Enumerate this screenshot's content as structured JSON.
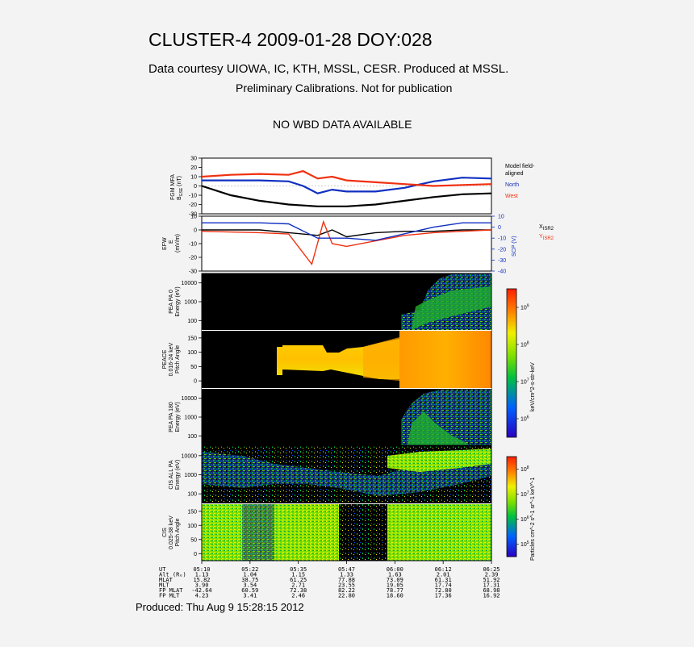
{
  "header": {
    "title": "CLUSTER-4 2009-01-28 DOY:028",
    "courtesy": "Data courtesy UIOWA, IC, KTH, MSSL, CESR. Produced at MSSL.",
    "preliminary": "Preliminary Calibrations. Not for publication",
    "no_wbd": "NO WBD DATA AVAILABLE"
  },
  "footer": {
    "produced": "Produced: Thu Aug  9 15:28:15 2012"
  },
  "chart_data": [
    {
      "type": "line",
      "panel": "FGM",
      "ylabel_lines": [
        "FGM MFA",
        "B",
        "GSE",
        "(nT)"
      ],
      "ylim": [
        -30,
        30
      ],
      "yticks": [
        30,
        20,
        10,
        0,
        -10,
        -20,
        -30
      ],
      "legend": [
        "Model field-",
        "aligned",
        "North",
        "West"
      ],
      "colors": {
        "model": "#000000",
        "north": "#1030c0",
        "west": "#f03010"
      },
      "series": [
        {
          "name": "Model field-aligned",
          "x": [
            0,
            0.1,
            0.2,
            0.3,
            0.4,
            0.5,
            0.6,
            0.7,
            0.8,
            0.9,
            1.0
          ],
          "values": [
            0,
            -10,
            -16,
            -20,
            -22,
            -22,
            -20,
            -16,
            -12,
            -9,
            -8
          ]
        },
        {
          "name": "North",
          "x": [
            0,
            0.1,
            0.2,
            0.3,
            0.35,
            0.4,
            0.45,
            0.5,
            0.6,
            0.7,
            0.8,
            0.9,
            1.0
          ],
          "values": [
            6,
            6,
            6,
            5,
            0,
            -8,
            -4,
            -6,
            -6,
            -2,
            5,
            9,
            8
          ]
        },
        {
          "name": "West",
          "x": [
            0,
            0.1,
            0.2,
            0.3,
            0.35,
            0.4,
            0.45,
            0.5,
            0.6,
            0.7,
            0.8,
            0.9,
            1.0
          ],
          "values": [
            10,
            12,
            13,
            12,
            16,
            8,
            10,
            6,
            4,
            2,
            0,
            1,
            2
          ]
        }
      ]
    },
    {
      "type": "line",
      "panel": "EFW",
      "ylabel_lines": [
        "EFW",
        "E",
        "(mV/m)"
      ],
      "ylim": [
        -30,
        10
      ],
      "yticks": [
        10,
        0,
        -10,
        -20,
        -30
      ],
      "right_axis": {
        "label": "SCP (V)",
        "ylim": [
          -40,
          10
        ],
        "ticks": [
          10,
          0,
          -10,
          -20,
          -30,
          -40
        ]
      },
      "legend": [
        "X",
        "ISR2",
        "Y",
        "ISR2"
      ],
      "colors": {
        "x": "#000000",
        "y": "#f03010",
        "scp": "#1030c0"
      },
      "series": [
        {
          "name": "X ISR2",
          "x": [
            0,
            0.2,
            0.3,
            0.4,
            0.45,
            0.5,
            0.6,
            0.7,
            0.8,
            0.9,
            1.0
          ],
          "values": [
            0,
            0,
            -2,
            -4,
            0,
            -5,
            -2,
            -1,
            -1,
            0,
            0
          ]
        },
        {
          "name": "Y ISR2",
          "x": [
            0,
            0.2,
            0.3,
            0.38,
            0.42,
            0.45,
            0.5,
            0.6,
            0.7,
            0.8,
            0.9,
            1.0
          ],
          "values": [
            -1,
            -2,
            -3,
            -25,
            6,
            -10,
            -12,
            -8,
            -4,
            -2,
            -1,
            0
          ]
        },
        {
          "name": "SCP",
          "x": [
            0,
            0.2,
            0.3,
            0.4,
            0.5,
            0.6,
            0.7,
            0.8,
            0.9,
            1.0
          ],
          "values": [
            4,
            4,
            3,
            -10,
            -10,
            -12,
            -6,
            0,
            4,
            4
          ]
        }
      ]
    },
    {
      "type": "heatmap",
      "panel": "PEACE",
      "subpanels": [
        {
          "ylabel_lines": [
            "PEA PA 0",
            "Energy (eV)"
          ],
          "yticks": [
            "10000",
            "1000",
            "100"
          ]
        },
        {
          "ylabel_lines": [
            "PEACE",
            "0.016-24 keV",
            "Pitch Angle"
          ],
          "yticks": [
            "150",
            "100",
            "50",
            "0"
          ]
        },
        {
          "ylabel_lines": [
            "PEA PA 180",
            "Energy (eV)"
          ],
          "yticks": [
            "10000",
            "1000",
            "100"
          ]
        }
      ],
      "colorbar": {
        "label": "keV/cm^2-s-str-keV",
        "ticks": [
          "10^9",
          "10^8",
          "10^7",
          "10^6"
        ]
      }
    },
    {
      "type": "heatmap",
      "panel": "CIS",
      "subpanels": [
        {
          "ylabel_lines": [
            "CIS ALL PA",
            "Energy (eV)"
          ],
          "yticks": [
            "10000",
            "1000",
            "100"
          ]
        },
        {
          "ylabel_lines": [
            "CIS",
            "0.025-38 keV",
            "Pitch Angle"
          ],
          "yticks": [
            "150",
            "100",
            "50",
            "0"
          ]
        }
      ],
      "colorbar": {
        "label": "Particles cm^-2 s^-1 sr^-1 keV^-1",
        "ticks": [
          "10^8",
          "10^7",
          "10^6",
          "10^5"
        ]
      }
    }
  ],
  "ephemeris": {
    "labels": [
      "UT",
      "Alt (Rₑ)",
      "MLAT",
      "MLT",
      "FP MLAT",
      "FP MLT"
    ],
    "columns": [
      {
        "ut": "05:10",
        "alt": "1.13",
        "mlat": "15.82",
        "mlt": "3.90",
        "fp_mlat": "-42.64",
        "fp_mlt": "4.23"
      },
      {
        "ut": "05:22",
        "alt": "1.04",
        "mlat": "38.75",
        "mlt": "3.54",
        "fp_mlat": "60.59",
        "fp_mlt": "3.41"
      },
      {
        "ut": "05:35",
        "alt": "1.15",
        "mlat": "61.25",
        "mlt": "2.71",
        "fp_mlat": "72.38",
        "fp_mlt": "2.46"
      },
      {
        "ut": "05:47",
        "alt": "1.33",
        "mlat": "77.88",
        "mlt": "23.55",
        "fp_mlat": "82.22",
        "fp_mlt": "22.80"
      },
      {
        "ut": "06:00",
        "alt": "1.63",
        "mlat": "73.09",
        "mlt": "19.05",
        "fp_mlat": "78.77",
        "fp_mlt": "18.60"
      },
      {
        "ut": "06:12",
        "alt": "2.01",
        "mlat": "61.31",
        "mlt": "17.74",
        "fp_mlat": "72.80",
        "fp_mlt": "17.36"
      },
      {
        "ut": "06:25",
        "alt": "2.39",
        "mlat": "51.92",
        "mlt": "17.31",
        "fp_mlat": "68.98",
        "fp_mlt": "16.92"
      }
    ]
  }
}
